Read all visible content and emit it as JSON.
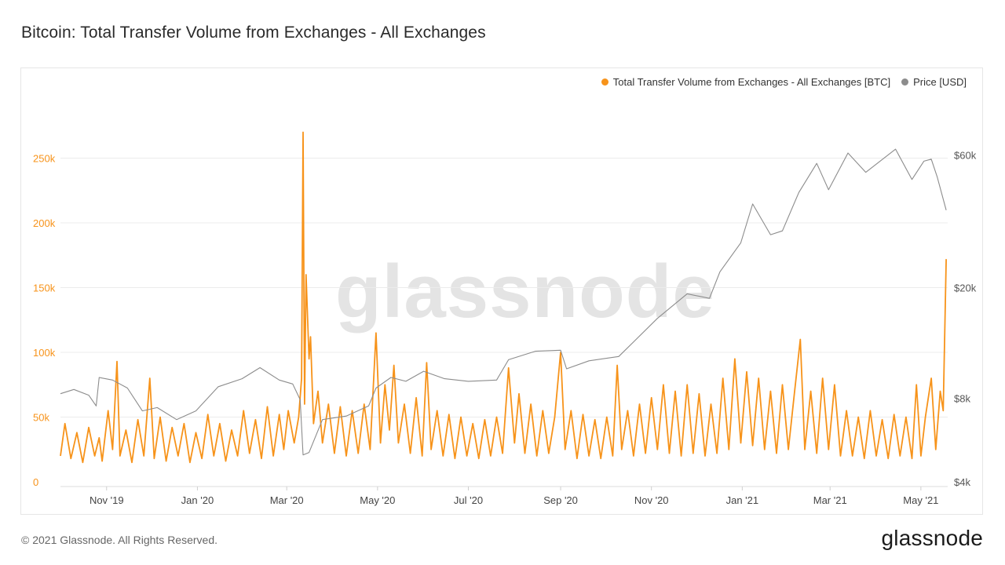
{
  "page": {
    "title": "Bitcoin: Total Transfer Volume from Exchanges - All Exchanges",
    "watermark": "glassnode",
    "footer_copyright": "© 2021 Glassnode. All Rights Reserved.",
    "footer_logo": "glassnode"
  },
  "legend": [
    {
      "label": "Total Transfer Volume from Exchanges - All Exchanges [BTC]",
      "color": "#f7931a"
    },
    {
      "label": "Price [USD]",
      "color": "#8c8c8c"
    }
  ],
  "chart_data": {
    "type": "line",
    "title": "Bitcoin: Total Transfer Volume from Exchanges - All Exchanges",
    "x_range": [
      "2019-10-01",
      "2021-05-19"
    ],
    "x_ticks": [
      {
        "date": "2019-11-01",
        "label": "Nov '19"
      },
      {
        "date": "2020-01-01",
        "label": "Jan '20"
      },
      {
        "date": "2020-03-01",
        "label": "Mar '20"
      },
      {
        "date": "2020-05-01",
        "label": "May '20"
      },
      {
        "date": "2020-07-01",
        "label": "Jul '20"
      },
      {
        "date": "2020-09-01",
        "label": "Sep '20"
      },
      {
        "date": "2020-11-01",
        "label": "Nov '20"
      },
      {
        "date": "2021-01-01",
        "label": "Jan '21"
      },
      {
        "date": "2021-03-01",
        "label": "Mar '21"
      },
      {
        "date": "2021-05-01",
        "label": "May '21"
      }
    ],
    "y_left": {
      "ylim": [
        0,
        300000
      ],
      "ticks": [
        {
          "value": 0,
          "label": "0"
        },
        {
          "value": 50000,
          "label": "50k"
        },
        {
          "value": 100000,
          "label": "100k"
        },
        {
          "value": 150000,
          "label": "150k"
        },
        {
          "value": 200000,
          "label": "200k"
        },
        {
          "value": 250000,
          "label": "250k"
        }
      ]
    },
    "y_right": {
      "scale": "log",
      "ylim": [
        4000,
        100000
      ],
      "ticks": [
        {
          "value": 4000,
          "label": "$4k"
        },
        {
          "value": 8000,
          "label": "$8k"
        },
        {
          "value": 20000,
          "label": "$20k"
        },
        {
          "value": 60000,
          "label": "$60k"
        }
      ]
    },
    "grid": true,
    "legend_position": "top-right",
    "series": [
      {
        "name": "Total Transfer Volume from Exchanges - All Exchanges [BTC]",
        "axis": "left",
        "color": "#f7931a",
        "points": [
          [
            "2019-10-01",
            20000
          ],
          [
            "2019-10-04",
            45000
          ],
          [
            "2019-10-08",
            18000
          ],
          [
            "2019-10-12",
            38000
          ],
          [
            "2019-10-16",
            15000
          ],
          [
            "2019-10-20",
            42000
          ],
          [
            "2019-10-24",
            20000
          ],
          [
            "2019-10-27",
            34000
          ],
          [
            "2019-10-29",
            16000
          ],
          [
            "2019-11-02",
            55000
          ],
          [
            "2019-11-05",
            25000
          ],
          [
            "2019-11-08",
            93000
          ],
          [
            "2019-11-10",
            20000
          ],
          [
            "2019-11-14",
            40000
          ],
          [
            "2019-11-18",
            15000
          ],
          [
            "2019-11-22",
            48000
          ],
          [
            "2019-11-26",
            20000
          ],
          [
            "2019-11-30",
            80000
          ],
          [
            "2019-12-03",
            18000
          ],
          [
            "2019-12-07",
            50000
          ],
          [
            "2019-12-11",
            16000
          ],
          [
            "2019-12-15",
            42000
          ],
          [
            "2019-12-19",
            20000
          ],
          [
            "2019-12-23",
            45000
          ],
          [
            "2019-12-27",
            15000
          ],
          [
            "2019-12-31",
            38000
          ],
          [
            "2020-01-04",
            18000
          ],
          [
            "2020-01-08",
            52000
          ],
          [
            "2020-01-12",
            20000
          ],
          [
            "2020-01-16",
            45000
          ],
          [
            "2020-01-20",
            16000
          ],
          [
            "2020-01-24",
            40000
          ],
          [
            "2020-01-28",
            20000
          ],
          [
            "2020-02-01",
            55000
          ],
          [
            "2020-02-05",
            22000
          ],
          [
            "2020-02-09",
            48000
          ],
          [
            "2020-02-13",
            18000
          ],
          [
            "2020-02-17",
            58000
          ],
          [
            "2020-02-21",
            20000
          ],
          [
            "2020-02-25",
            52000
          ],
          [
            "2020-02-28",
            25000
          ],
          [
            "2020-03-02",
            55000
          ],
          [
            "2020-03-06",
            30000
          ],
          [
            "2020-03-09",
            50000
          ],
          [
            "2020-03-11",
            80000
          ],
          [
            "2020-03-12",
            270000
          ],
          [
            "2020-03-13",
            60000
          ],
          [
            "2020-03-14",
            160000
          ],
          [
            "2020-03-16",
            95000
          ],
          [
            "2020-03-17",
            112000
          ],
          [
            "2020-03-19",
            45000
          ],
          [
            "2020-03-22",
            70000
          ],
          [
            "2020-03-25",
            30000
          ],
          [
            "2020-03-29",
            60000
          ],
          [
            "2020-04-02",
            22000
          ],
          [
            "2020-04-06",
            58000
          ],
          [
            "2020-04-10",
            20000
          ],
          [
            "2020-04-14",
            55000
          ],
          [
            "2020-04-18",
            22000
          ],
          [
            "2020-04-22",
            60000
          ],
          [
            "2020-04-26",
            25000
          ],
          [
            "2020-04-30",
            115000
          ],
          [
            "2020-05-03",
            30000
          ],
          [
            "2020-05-06",
            75000
          ],
          [
            "2020-05-09",
            40000
          ],
          [
            "2020-05-12",
            90000
          ],
          [
            "2020-05-15",
            30000
          ],
          [
            "2020-05-19",
            60000
          ],
          [
            "2020-05-23",
            22000
          ],
          [
            "2020-05-27",
            65000
          ],
          [
            "2020-05-31",
            20000
          ],
          [
            "2020-06-03",
            92000
          ],
          [
            "2020-06-06",
            25000
          ],
          [
            "2020-06-10",
            55000
          ],
          [
            "2020-06-14",
            20000
          ],
          [
            "2020-06-18",
            52000
          ],
          [
            "2020-06-22",
            18000
          ],
          [
            "2020-06-26",
            50000
          ],
          [
            "2020-06-30",
            20000
          ],
          [
            "2020-07-04",
            45000
          ],
          [
            "2020-07-08",
            18000
          ],
          [
            "2020-07-12",
            48000
          ],
          [
            "2020-07-16",
            20000
          ],
          [
            "2020-07-20",
            50000
          ],
          [
            "2020-07-24",
            22000
          ],
          [
            "2020-07-28",
            88000
          ],
          [
            "2020-08-01",
            30000
          ],
          [
            "2020-08-04",
            68000
          ],
          [
            "2020-08-08",
            22000
          ],
          [
            "2020-08-12",
            60000
          ],
          [
            "2020-08-16",
            20000
          ],
          [
            "2020-08-20",
            55000
          ],
          [
            "2020-08-24",
            22000
          ],
          [
            "2020-08-28",
            50000
          ],
          [
            "2020-09-01",
            100000
          ],
          [
            "2020-09-04",
            25000
          ],
          [
            "2020-09-08",
            55000
          ],
          [
            "2020-09-12",
            18000
          ],
          [
            "2020-09-16",
            52000
          ],
          [
            "2020-09-20",
            20000
          ],
          [
            "2020-09-24",
            48000
          ],
          [
            "2020-09-28",
            18000
          ],
          [
            "2020-10-02",
            50000
          ],
          [
            "2020-10-06",
            20000
          ],
          [
            "2020-10-09",
            90000
          ],
          [
            "2020-10-12",
            25000
          ],
          [
            "2020-10-16",
            55000
          ],
          [
            "2020-10-20",
            20000
          ],
          [
            "2020-10-24",
            60000
          ],
          [
            "2020-10-28",
            22000
          ],
          [
            "2020-11-01",
            65000
          ],
          [
            "2020-11-05",
            25000
          ],
          [
            "2020-11-09",
            75000
          ],
          [
            "2020-11-13",
            22000
          ],
          [
            "2020-11-17",
            70000
          ],
          [
            "2020-11-21",
            20000
          ],
          [
            "2020-11-25",
            75000
          ],
          [
            "2020-11-29",
            22000
          ],
          [
            "2020-12-03",
            68000
          ],
          [
            "2020-12-07",
            20000
          ],
          [
            "2020-12-11",
            60000
          ],
          [
            "2020-12-15",
            22000
          ],
          [
            "2020-12-19",
            80000
          ],
          [
            "2020-12-23",
            25000
          ],
          [
            "2020-12-27",
            95000
          ],
          [
            "2020-12-31",
            30000
          ],
          [
            "2021-01-04",
            85000
          ],
          [
            "2021-01-08",
            28000
          ],
          [
            "2021-01-12",
            80000
          ],
          [
            "2021-01-16",
            25000
          ],
          [
            "2021-01-20",
            70000
          ],
          [
            "2021-01-24",
            22000
          ],
          [
            "2021-01-28",
            75000
          ],
          [
            "2021-02-01",
            25000
          ],
          [
            "2021-02-05",
            68000
          ],
          [
            "2021-02-09",
            110000
          ],
          [
            "2021-02-12",
            25000
          ],
          [
            "2021-02-16",
            70000
          ],
          [
            "2021-02-20",
            22000
          ],
          [
            "2021-02-24",
            80000
          ],
          [
            "2021-02-28",
            25000
          ],
          [
            "2021-03-04",
            75000
          ],
          [
            "2021-03-08",
            20000
          ],
          [
            "2021-03-12",
            55000
          ],
          [
            "2021-03-16",
            20000
          ],
          [
            "2021-03-20",
            50000
          ],
          [
            "2021-03-24",
            18000
          ],
          [
            "2021-03-28",
            55000
          ],
          [
            "2021-04-01",
            20000
          ],
          [
            "2021-04-05",
            48000
          ],
          [
            "2021-04-09",
            18000
          ],
          [
            "2021-04-13",
            52000
          ],
          [
            "2021-04-17",
            20000
          ],
          [
            "2021-04-21",
            50000
          ],
          [
            "2021-04-25",
            18000
          ],
          [
            "2021-04-28",
            75000
          ],
          [
            "2021-05-01",
            20000
          ],
          [
            "2021-05-04",
            50000
          ],
          [
            "2021-05-08",
            80000
          ],
          [
            "2021-05-11",
            25000
          ],
          [
            "2021-05-14",
            70000
          ],
          [
            "2021-05-16",
            55000
          ],
          [
            "2021-05-18",
            172000
          ]
        ]
      },
      {
        "name": "Price [USD]",
        "axis": "right",
        "color": "#8c8c8c",
        "points": [
          [
            "2019-10-01",
            8300
          ],
          [
            "2019-10-10",
            8600
          ],
          [
            "2019-10-20",
            8200
          ],
          [
            "2019-10-25",
            7500
          ],
          [
            "2019-10-27",
            9500
          ],
          [
            "2019-11-05",
            9300
          ],
          [
            "2019-11-15",
            8700
          ],
          [
            "2019-11-25",
            7200
          ],
          [
            "2019-12-05",
            7400
          ],
          [
            "2019-12-18",
            6700
          ],
          [
            "2019-12-31",
            7200
          ],
          [
            "2020-01-15",
            8800
          ],
          [
            "2020-01-31",
            9400
          ],
          [
            "2020-02-12",
            10300
          ],
          [
            "2020-02-25",
            9300
          ],
          [
            "2020-03-05",
            9000
          ],
          [
            "2020-03-10",
            7900
          ],
          [
            "2020-03-12",
            5000
          ],
          [
            "2020-03-16",
            5100
          ],
          [
            "2020-03-25",
            6700
          ],
          [
            "2020-04-10",
            6900
          ],
          [
            "2020-04-25",
            7500
          ],
          [
            "2020-04-30",
            8700
          ],
          [
            "2020-05-10",
            9500
          ],
          [
            "2020-05-20",
            9200
          ],
          [
            "2020-06-01",
            10000
          ],
          [
            "2020-06-15",
            9400
          ],
          [
            "2020-07-01",
            9200
          ],
          [
            "2020-07-20",
            9300
          ],
          [
            "2020-07-28",
            11000
          ],
          [
            "2020-08-15",
            11800
          ],
          [
            "2020-09-01",
            11900
          ],
          [
            "2020-09-05",
            10200
          ],
          [
            "2020-09-20",
            10900
          ],
          [
            "2020-10-10",
            11300
          ],
          [
            "2020-10-21",
            12900
          ],
          [
            "2020-11-05",
            15500
          ],
          [
            "2020-11-25",
            19000
          ],
          [
            "2020-12-10",
            18300
          ],
          [
            "2020-12-17",
            22800
          ],
          [
            "2020-12-31",
            29000
          ],
          [
            "2021-01-08",
            40000
          ],
          [
            "2021-01-20",
            31000
          ],
          [
            "2021-01-28",
            32000
          ],
          [
            "2021-02-08",
            44000
          ],
          [
            "2021-02-20",
            56000
          ],
          [
            "2021-02-28",
            45000
          ],
          [
            "2021-03-13",
            61000
          ],
          [
            "2021-03-25",
            52000
          ],
          [
            "2021-04-14",
            63000
          ],
          [
            "2021-04-25",
            49000
          ],
          [
            "2021-05-03",
            57000
          ],
          [
            "2021-05-08",
            58000
          ],
          [
            "2021-05-12",
            50000
          ],
          [
            "2021-05-18",
            38000
          ]
        ]
      }
    ]
  }
}
